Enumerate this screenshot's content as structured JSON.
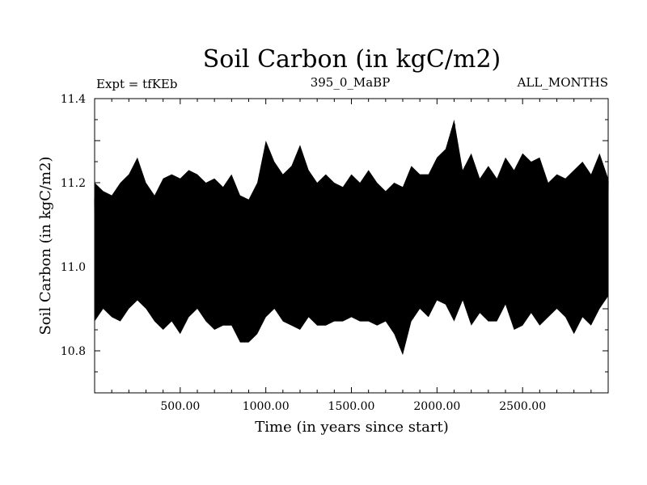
{
  "chart_data": {
    "type": "line",
    "title": "Soil Carbon (in kgC/m2)",
    "subtitle_left": "Expt = tfKEb",
    "subtitle_center": "395_0_MaBP",
    "subtitle_right": "ALL_MONTHS",
    "xlabel": "Time (in years since start)",
    "ylabel": "Soil Carbon (in kgC/m2)",
    "xlim": [
      0,
      3000
    ],
    "ylim": [
      10.7,
      11.4
    ],
    "x_ticks": [
      500,
      1000,
      1500,
      2000,
      2500
    ],
    "x_tick_labels": [
      "500.00",
      "1000.00",
      "1500.00",
      "2000.00",
      "2500.00"
    ],
    "y_ticks": [
      10.8,
      11.0,
      11.2,
      11.4
    ],
    "y_tick_labels": [
      "10.8",
      "11.0",
      "11.2",
      "11.4"
    ],
    "grid": false,
    "series": [
      {
        "color": "#000000",
        "x": [
          0,
          50,
          100,
          150,
          200,
          250,
          300,
          350,
          400,
          450,
          500,
          550,
          600,
          650,
          700,
          750,
          800,
          850,
          900,
          950,
          1000,
          1050,
          1100,
          1150,
          1200,
          1250,
          1300,
          1350,
          1400,
          1450,
          1500,
          1550,
          1600,
          1650,
          1700,
          1750,
          1800,
          1850,
          1900,
          1950,
          2000,
          2050,
          2100,
          2150,
          2200,
          2250,
          2300,
          2350,
          2400,
          2450,
          2500,
          2550,
          2600,
          2650,
          2700,
          2750,
          2800,
          2850,
          2900,
          2950,
          3000
        ],
        "upper": [
          11.2,
          11.18,
          11.17,
          11.2,
          11.22,
          11.26,
          11.2,
          11.17,
          11.21,
          11.22,
          11.21,
          11.23,
          11.22,
          11.2,
          11.21,
          11.19,
          11.22,
          11.17,
          11.16,
          11.2,
          11.3,
          11.25,
          11.22,
          11.24,
          11.29,
          11.23,
          11.2,
          11.22,
          11.2,
          11.19,
          11.22,
          11.2,
          11.23,
          11.2,
          11.18,
          11.2,
          11.19,
          11.24,
          11.22,
          11.22,
          11.26,
          11.28,
          11.35,
          11.23,
          11.27,
          11.21,
          11.24,
          11.21,
          11.26,
          11.23,
          11.27,
          11.25,
          11.26,
          11.2,
          11.22,
          11.21,
          11.23,
          11.25,
          11.22,
          11.27,
          11.21
        ],
        "lower": [
          10.87,
          10.9,
          10.88,
          10.87,
          10.9,
          10.92,
          10.9,
          10.87,
          10.85,
          10.87,
          10.84,
          10.88,
          10.9,
          10.87,
          10.85,
          10.86,
          10.86,
          10.82,
          10.82,
          10.84,
          10.88,
          10.9,
          10.87,
          10.86,
          10.85,
          10.88,
          10.86,
          10.86,
          10.87,
          10.87,
          10.88,
          10.87,
          10.87,
          10.86,
          10.87,
          10.84,
          10.79,
          10.87,
          10.9,
          10.88,
          10.92,
          10.91,
          10.87,
          10.92,
          10.86,
          10.89,
          10.87,
          10.87,
          10.91,
          10.85,
          10.86,
          10.89,
          10.86,
          10.88,
          10.9,
          10.88,
          10.84,
          10.88,
          10.86,
          10.9,
          10.93
        ]
      }
    ]
  }
}
